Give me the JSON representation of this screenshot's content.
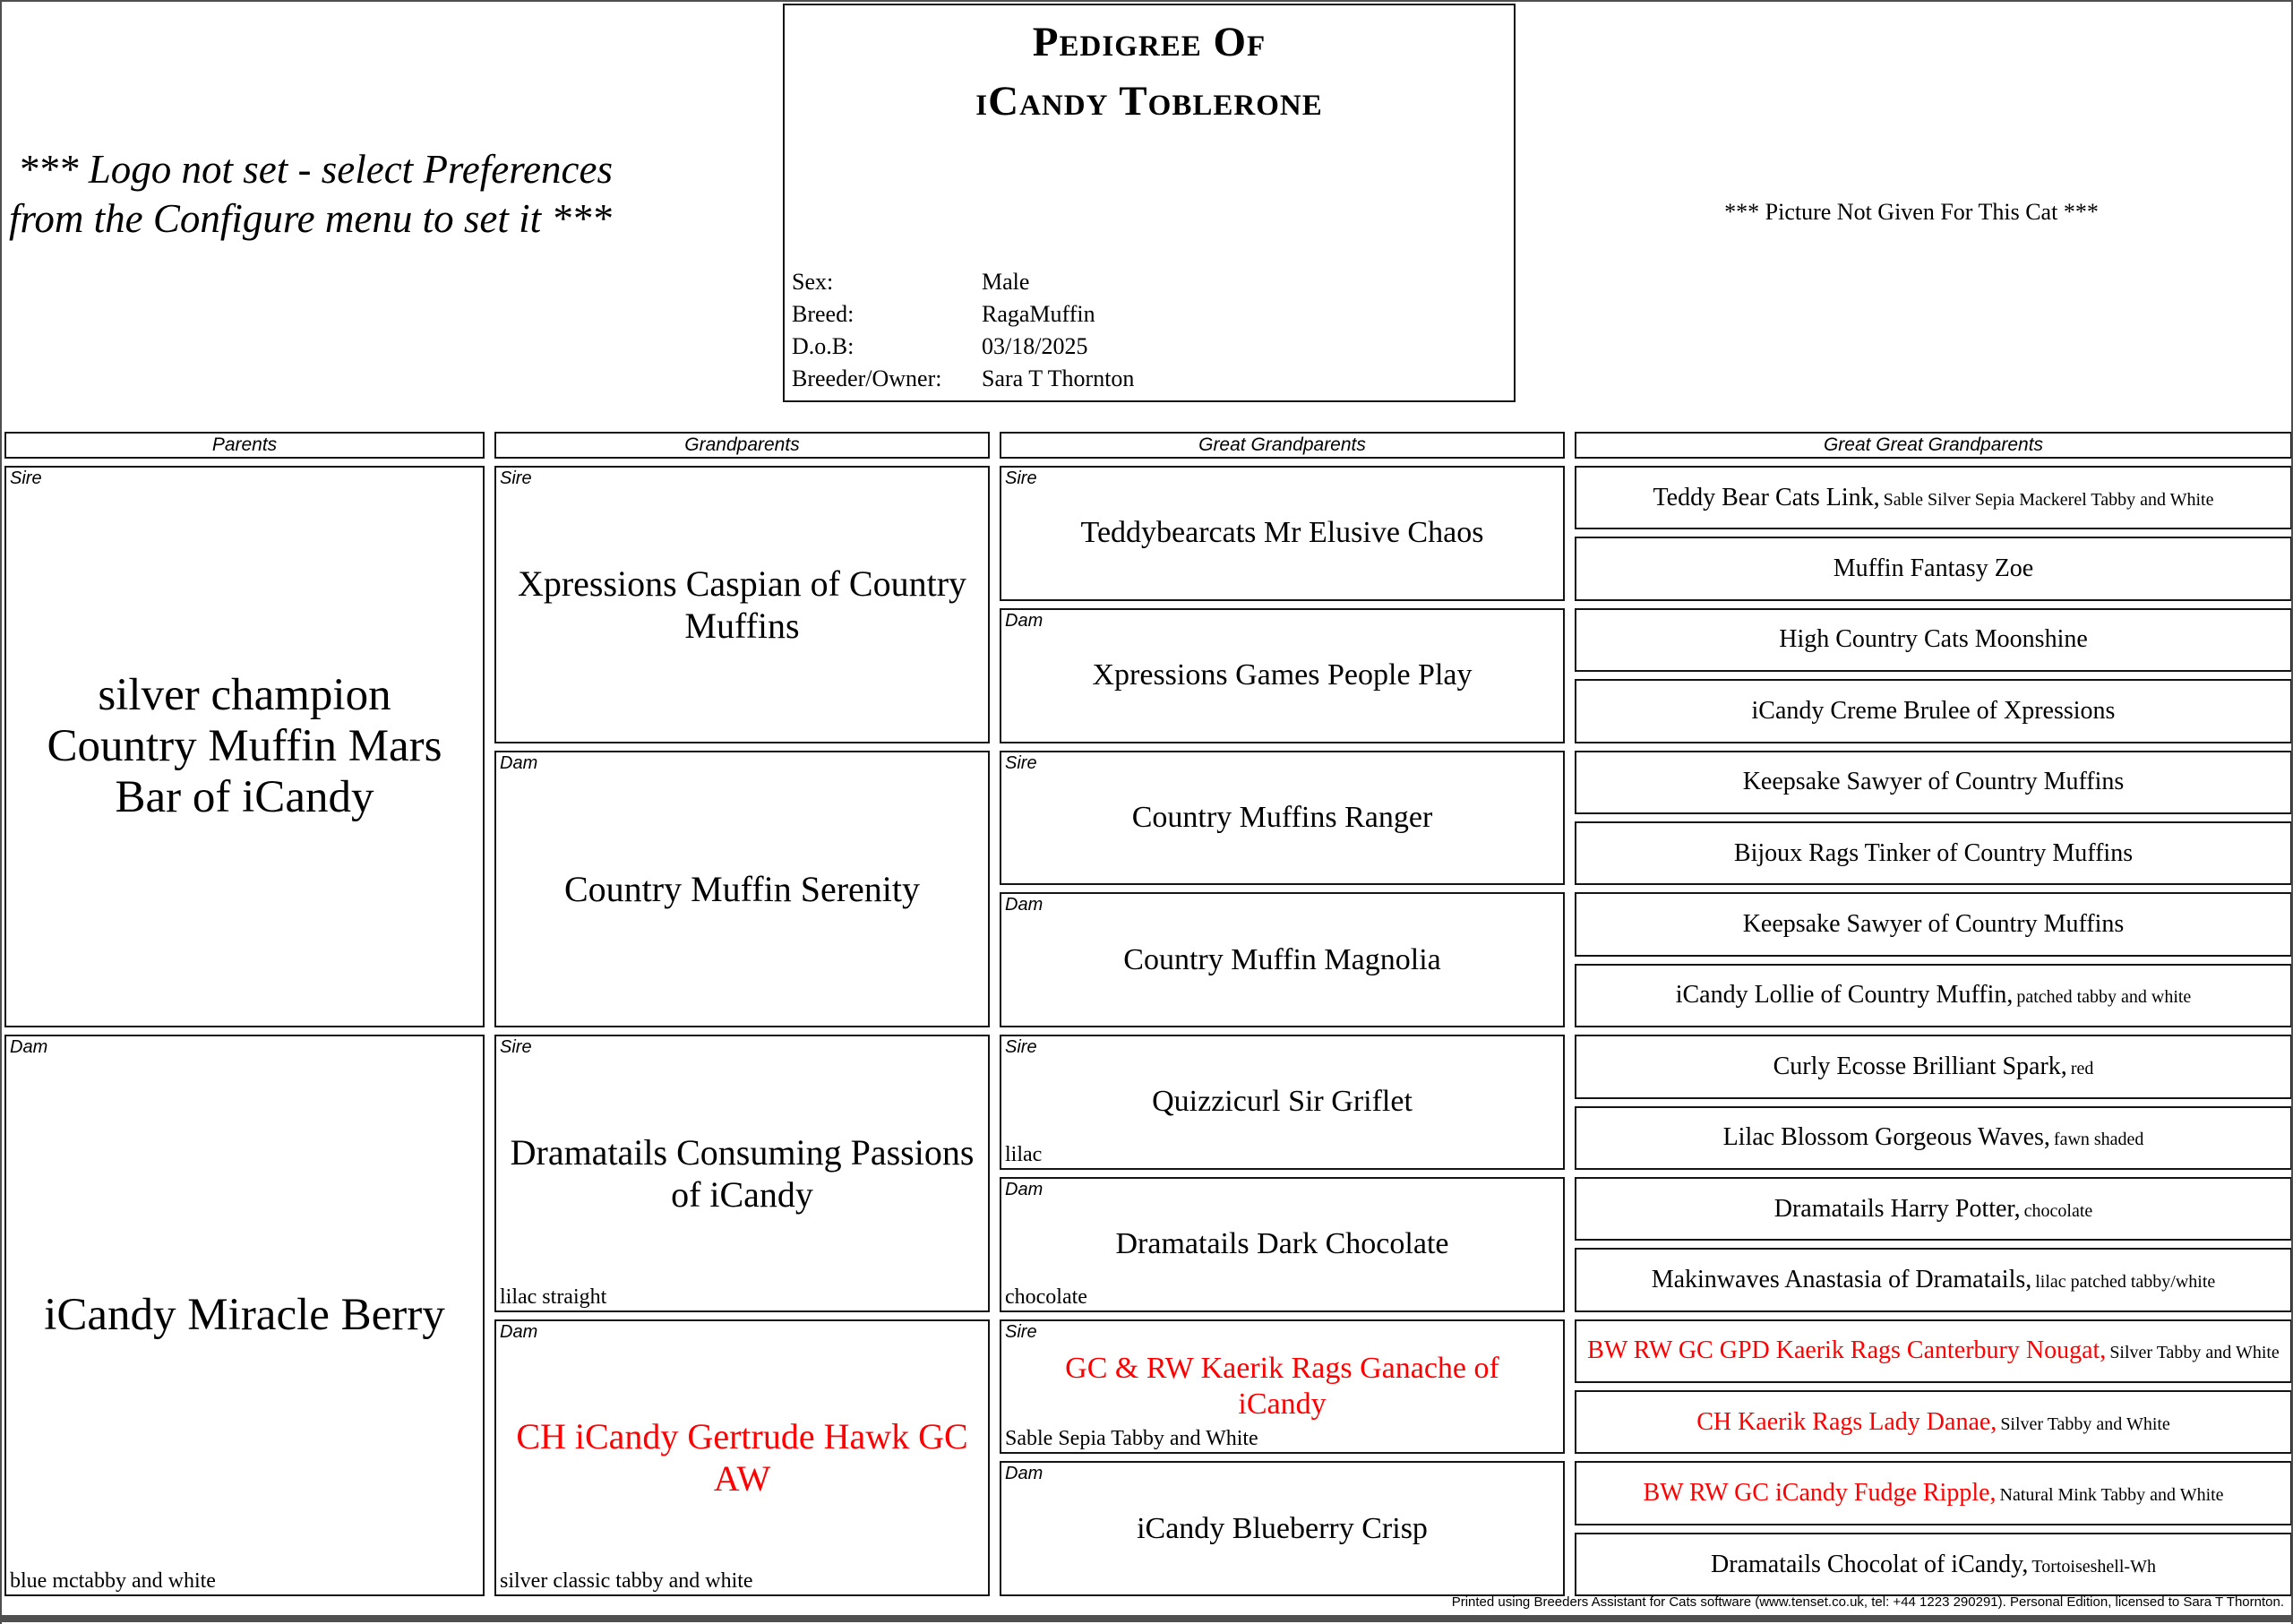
{
  "page": {
    "logo_notice": "*** Logo not set - select Preferences\nfrom the Configure menu to set it ***",
    "picture_notice": "*** Picture Not Given For This Cat ***",
    "footer": "Printed using Breeders Assistant for Cats software (www.tenset.co.uk, tel: +44 1223 290291). Personal Edition, licensed to Sara T Thornton."
  },
  "title_box": {
    "title_line1": "Pedigree Of",
    "title_line2": "iCandy Toblerone",
    "details": [
      {
        "label": "Sex:",
        "value": "Male"
      },
      {
        "label": "Breed:",
        "value": "RagaMuffin"
      },
      {
        "label": "D.o.B:",
        "value": "03/18/2025"
      },
      {
        "label": "Breeder/Owner:",
        "value": "Sara T Thornton"
      }
    ]
  },
  "columns": [
    "Parents",
    "Grandparents",
    "Great Grandparents",
    "Great Great Grandparents"
  ],
  "colors": {
    "highlight_name": "#ff0000",
    "box_border": "#141414",
    "page_edge": "#4f4f4f"
  },
  "pedigree": {
    "parents": [
      {
        "relation": "Sire",
        "name": "silver champion\nCountry Muffin Mars\nBar of iCandy"
      },
      {
        "relation": "Dam",
        "name": "iCandy Miracle Berry",
        "note": "blue mctabby and white"
      }
    ],
    "grandparents": [
      {
        "relation": "Sire",
        "name": "Xpressions Caspian of Country\nMuffins"
      },
      {
        "relation": "Dam",
        "name": "Country Muffin Serenity"
      },
      {
        "relation": "Sire",
        "name": "Dramatails Consuming Passions\nof iCandy",
        "note": "lilac straight"
      },
      {
        "relation": "Dam",
        "name": "CH iCandy Gertrude Hawk GC\nAW",
        "red": true,
        "note": "silver classic tabby and white"
      }
    ],
    "great_grandparents": [
      {
        "relation": "Sire",
        "name": "Teddybearcats Mr Elusive Chaos"
      },
      {
        "relation": "Dam",
        "name": "Xpressions Games People Play"
      },
      {
        "relation": "Sire",
        "name": "Country Muffins Ranger"
      },
      {
        "relation": "Dam",
        "name": "Country Muffin Magnolia"
      },
      {
        "relation": "Sire",
        "name": "Quizzicurl Sir Griflet",
        "note": "lilac"
      },
      {
        "relation": "Dam",
        "name": "Dramatails Dark Chocolate",
        "note": "chocolate"
      },
      {
        "relation": "Sire",
        "name": "GC & RW Kaerik Rags Ganache of\niCandy",
        "red": true,
        "note": "Sable Sepia Tabby and White"
      },
      {
        "relation": "Dam",
        "name": "iCandy Blueberry Crisp"
      }
    ],
    "great_great_grandparents": [
      {
        "name": "Teddy Bear Cats Link,",
        "sub": "Sable Silver Sepia Mackerel Tabby and White"
      },
      {
        "name": "Muffin Fantasy Zoe"
      },
      {
        "name": "High Country Cats Moonshine"
      },
      {
        "name": "iCandy Creme Brulee of Xpressions"
      },
      {
        "name": "Keepsake Sawyer of Country Muffins"
      },
      {
        "name": "Bijoux Rags Tinker of Country Muffins"
      },
      {
        "name": "Keepsake Sawyer of Country Muffins"
      },
      {
        "name": "iCandy Lollie of Country Muffin,",
        "sub": "patched tabby and white"
      },
      {
        "name": "Curly Ecosse Brilliant Spark,",
        "sub": "red"
      },
      {
        "name": "Lilac Blossom Gorgeous Waves,",
        "sub": "fawn shaded"
      },
      {
        "name": "Dramatails Harry Potter,",
        "sub": "chocolate"
      },
      {
        "name": "Makinwaves Anastasia of Dramatails,",
        "sub": "lilac patched tabby/white"
      },
      {
        "name": "BW RW GC GPD Kaerik Rags Canterbury Nougat,",
        "red": true,
        "sub": "Silver Tabby and White"
      },
      {
        "name": "CH Kaerik Rags Lady Danae,",
        "red": true,
        "sub": "Silver Tabby and White"
      },
      {
        "name": "BW RW GC iCandy Fudge Ripple,",
        "red": true,
        "sub": "Natural Mink Tabby and White"
      },
      {
        "name": "Dramatails Chocolat of iCandy,",
        "sub": "Tortoiseshell-Wh"
      }
    ]
  }
}
